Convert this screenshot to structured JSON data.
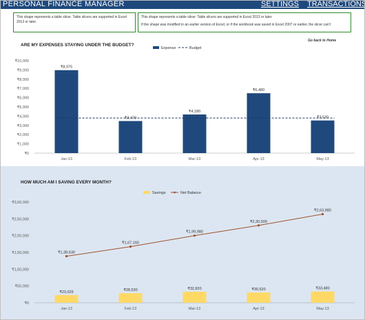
{
  "header": {
    "title": "PERSONAL FINANCE MANAGER",
    "nav": {
      "settings": "SETTINGS",
      "transactions": "TRANSACTIONS"
    }
  },
  "slicers": {
    "left": {
      "line1": "This shape represents a table slicer. Table slicers are supported in Excel 2013 or later."
    },
    "right": {
      "line1": "This shape represents a table slicer. Table slicers are supported in Excel 2013 or later.",
      "line2": "If the shape was modified in an earlier version of Excel, or if the workbook was saved in Excel 2007 or earlier, the slicer can't"
    }
  },
  "expense_chart": {
    "title": "ARE MY EXPENSES STAYING UNDER THE BUDGET?",
    "hint": "Go back to Home",
    "colors": {
      "expense": "#1f497d",
      "budget": "#1f3864"
    },
    "chart_data": {
      "type": "bar",
      "categories": [
        "Jan-13",
        "Feb-13",
        "Mar-13",
        "Apr-13",
        "May-13"
      ],
      "series": [
        {
          "name": "Expense",
          "values": [
            8975,
            3470,
            4180,
            6480,
            3530
          ],
          "labels": [
            "₹8,975",
            "₹3,470",
            "₹4,180",
            "₹6,480",
            "₹3,530"
          ]
        },
        {
          "name": "Budget",
          "type": "line",
          "values": [
            3800,
            3800,
            3800,
            3800,
            3800
          ]
        }
      ],
      "yticks": [
        "₹0",
        "₹1,000",
        "₹2,000",
        "₹3,000",
        "₹4,000",
        "₹5,000",
        "₹6,000",
        "₹7,000",
        "₹8,000",
        "₹9,000",
        "₹10,000"
      ],
      "ylim": [
        0,
        10000
      ],
      "legend": "top-center"
    }
  },
  "savings_chart": {
    "title": "HOW MUCH AM I SAVING EVERY MONTH?",
    "colors": {
      "savings": "#ffd966",
      "net_balance": "#a0522d"
    },
    "chart_data": {
      "type": "bar",
      "categories": [
        "Jan-13",
        "Feb-13",
        "Mar-13",
        "Apr-13",
        "May-13"
      ],
      "series": [
        {
          "name": "Savings",
          "values": [
            23025,
            28530,
            32820,
            30520,
            33480
          ],
          "labels": [
            "₹23,025",
            "₹28,530",
            "₹32,820",
            "₹30,520",
            "₹33,480"
          ]
        },
        {
          "name": "Net Balance",
          "type": "line",
          "values": [
            138630,
            167160,
            199980,
            230500,
            263980
          ],
          "labels": [
            "₹1,38,630",
            "₹1,67,160",
            "₹1,99,980",
            "₹2,30,500",
            "₹2,63,980"
          ]
        }
      ],
      "yticks": [
        "₹0",
        "₹50,000",
        "₹1,00,000",
        "₹1,50,000",
        "₹2,00,000",
        "₹2,50,000",
        "₹3,00,000"
      ],
      "ylim": [
        0,
        300000
      ],
      "legend": "top-center"
    }
  }
}
